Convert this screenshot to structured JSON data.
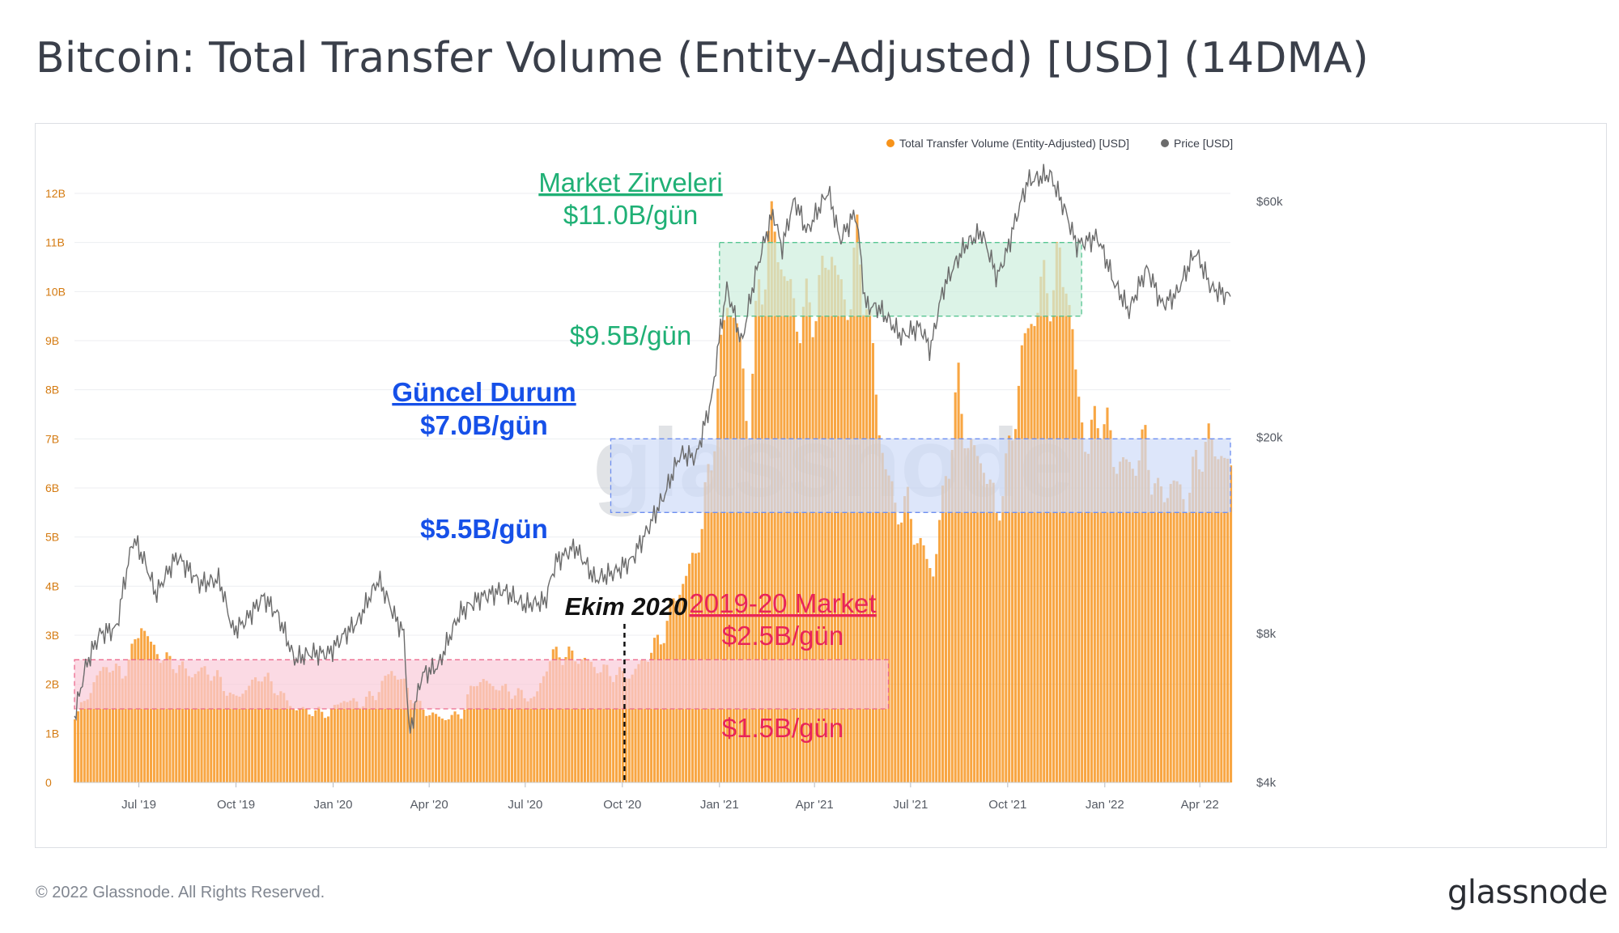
{
  "page": {
    "title": "Bitcoin: Total Transfer Volume (Entity-Adjusted) [USD] (14DMA)",
    "footer": "© 2022 Glassnode. All Rights Reserved.",
    "brand": "glassnode",
    "watermark": "glassnode"
  },
  "colors": {
    "volume": "#f7931a",
    "price": "#6b6b6b",
    "green": "#1fb075",
    "blue": "#1650e8",
    "red": "#e8245a",
    "black": "#111111"
  },
  "chart_data": {
    "type": "bar",
    "legend": {
      "position": "top-right",
      "items": [
        {
          "name": "Total Transfer Volume (Entity-Adjusted) [USD]",
          "color": "#f7931a"
        },
        {
          "name": "Price [USD]",
          "color": "#6b6b6b"
        }
      ]
    },
    "grid": true,
    "y_left": {
      "ticks": [
        "0",
        "1B",
        "2B",
        "3B",
        "4B",
        "5B",
        "6B",
        "7B",
        "8B",
        "9B",
        "10B",
        "11B",
        "12B"
      ],
      "range": [
        0,
        12000000000
      ]
    },
    "y_right": {
      "scale": "log",
      "ticks": [
        {
          "label": "$4k",
          "value": 4000
        },
        {
          "label": "$8k",
          "value": 8000
        },
        {
          "label": "$20k",
          "value": 20000
        },
        {
          "label": "$60k",
          "value": 60000
        }
      ]
    },
    "x_ticks": [
      "Jul '19",
      "Oct '19",
      "Jan '20",
      "Apr '20",
      "Jul '20",
      "Oct '20",
      "Jan '21",
      "Apr '21",
      "Jul '21",
      "Oct '21",
      "Jan '22",
      "Apr '22"
    ],
    "x_range": [
      "2019-05-01",
      "2022-04-30"
    ],
    "series": [
      {
        "name": "Total Transfer Volume (Entity-Adjusted) [USD]",
        "kind": "bar",
        "unit": "USD billions",
        "points": [
          [
            "2019-05-01",
            1.4
          ],
          [
            "2019-05-10",
            1.6
          ],
          [
            "2019-05-20",
            2.1
          ],
          [
            "2019-06-01",
            2.4
          ],
          [
            "2019-06-15",
            2.2
          ],
          [
            "2019-06-25",
            2.7
          ],
          [
            "2019-07-03",
            3.25
          ],
          [
            "2019-07-12",
            2.8
          ],
          [
            "2019-07-25",
            2.5
          ],
          [
            "2019-08-05",
            2.4
          ],
          [
            "2019-08-20",
            2.2
          ],
          [
            "2019-09-01",
            2.3
          ],
          [
            "2019-09-15",
            2.1
          ],
          [
            "2019-09-28",
            1.7
          ],
          [
            "2019-10-10",
            1.9
          ],
          [
            "2019-10-25",
            2.2
          ],
          [
            "2019-11-08",
            1.9
          ],
          [
            "2019-11-25",
            1.5
          ],
          [
            "2019-12-10",
            1.45
          ],
          [
            "2019-12-28",
            1.4
          ],
          [
            "2020-01-10",
            1.7
          ],
          [
            "2020-01-25",
            1.6
          ],
          [
            "2020-02-10",
            1.8
          ],
          [
            "2020-02-25",
            2.3
          ],
          [
            "2020-03-08",
            2.0
          ],
          [
            "2020-03-20",
            1.6
          ],
          [
            "2020-04-01",
            1.4
          ],
          [
            "2020-04-15",
            1.3
          ],
          [
            "2020-05-01",
            1.4
          ],
          [
            "2020-05-15",
            2.1
          ],
          [
            "2020-05-28",
            2.0
          ],
          [
            "2020-06-10",
            1.9
          ],
          [
            "2020-06-25",
            1.8
          ],
          [
            "2020-07-10",
            1.7
          ],
          [
            "2020-07-25",
            2.6
          ],
          [
            "2020-08-10",
            2.6
          ],
          [
            "2020-08-25",
            2.5
          ],
          [
            "2020-09-10",
            2.3
          ],
          [
            "2020-09-25",
            2.2
          ],
          [
            "2020-10-10",
            2.2
          ],
          [
            "2020-10-25",
            2.6
          ],
          [
            "2020-11-08",
            3.0
          ],
          [
            "2020-11-20",
            3.8
          ],
          [
            "2020-12-01",
            4.2
          ],
          [
            "2020-12-15",
            5.2
          ],
          [
            "2020-12-28",
            7.4
          ],
          [
            "2021-01-08",
            10.0
          ],
          [
            "2021-01-18",
            9.2
          ],
          [
            "2021-01-28",
            7.2
          ],
          [
            "2021-02-08",
            10.2
          ],
          [
            "2021-02-20",
            11.3
          ],
          [
            "2021-03-01",
            10.6
          ],
          [
            "2021-03-12",
            9.6
          ],
          [
            "2021-03-25",
            9.5
          ],
          [
            "2021-04-05",
            10.0
          ],
          [
            "2021-04-18",
            11.0
          ],
          [
            "2021-04-28",
            9.5
          ],
          [
            "2021-05-10",
            10.8
          ],
          [
            "2021-05-20",
            10.0
          ],
          [
            "2021-06-01",
            7.2
          ],
          [
            "2021-06-15",
            5.6
          ],
          [
            "2021-06-28",
            5.6
          ],
          [
            "2021-07-10",
            4.8
          ],
          [
            "2021-07-22",
            4.3
          ],
          [
            "2021-08-05",
            6.5
          ],
          [
            "2021-08-15",
            8.0
          ],
          [
            "2021-08-25",
            6.8
          ],
          [
            "2021-09-08",
            6.5
          ],
          [
            "2021-09-20",
            5.5
          ],
          [
            "2021-10-01",
            6.5
          ],
          [
            "2021-10-15",
            8.8
          ],
          [
            "2021-10-28",
            9.8
          ],
          [
            "2021-11-10",
            10.2
          ],
          [
            "2021-11-25",
            10.5
          ],
          [
            "2021-12-05",
            8.0
          ],
          [
            "2021-12-15",
            6.8
          ],
          [
            "2021-12-28",
            7.6
          ],
          [
            "2022-01-10",
            6.6
          ],
          [
            "2022-01-25",
            6.4
          ],
          [
            "2022-02-08",
            6.9
          ],
          [
            "2022-02-20",
            5.8
          ],
          [
            "2022-03-05",
            6.1
          ],
          [
            "2022-03-20",
            5.8
          ],
          [
            "2022-04-01",
            6.8
          ],
          [
            "2022-04-15",
            6.9
          ],
          [
            "2022-04-30",
            6.3
          ]
        ]
      },
      {
        "name": "Price [USD]",
        "kind": "line",
        "unit": "USD",
        "points": [
          [
            "2019-05-01",
            5400
          ],
          [
            "2019-05-12",
            6900
          ],
          [
            "2019-05-25",
            8000
          ],
          [
            "2019-06-10",
            8200
          ],
          [
            "2019-06-26",
            12500
          ],
          [
            "2019-07-08",
            11000
          ],
          [
            "2019-07-17",
            9600
          ],
          [
            "2019-08-06",
            11500
          ],
          [
            "2019-08-28",
            10100
          ],
          [
            "2019-09-15",
            10300
          ],
          [
            "2019-09-28",
            8100
          ],
          [
            "2019-10-10",
            8500
          ],
          [
            "2019-10-27",
            9500
          ],
          [
            "2019-11-10",
            8700
          ],
          [
            "2019-11-25",
            7100
          ],
          [
            "2019-12-10",
            7300
          ],
          [
            "2019-12-28",
            7300
          ],
          [
            "2020-01-10",
            7900
          ],
          [
            "2020-01-25",
            8500
          ],
          [
            "2020-02-13",
            10300
          ],
          [
            "2020-02-28",
            8700
          ],
          [
            "2020-03-08",
            8000
          ],
          [
            "2020-03-13",
            4900
          ],
          [
            "2020-03-25",
            6600
          ],
          [
            "2020-04-10",
            6900
          ],
          [
            "2020-04-30",
            8800
          ],
          [
            "2020-05-20",
            9500
          ],
          [
            "2020-06-10",
            9800
          ],
          [
            "2020-06-30",
            9150
          ],
          [
            "2020-07-20",
            9300
          ],
          [
            "2020-07-30",
            11200
          ],
          [
            "2020-08-17",
            12000
          ],
          [
            "2020-09-05",
            10300
          ],
          [
            "2020-09-25",
            10700
          ],
          [
            "2020-10-10",
            11300
          ],
          [
            "2020-10-25",
            13000
          ],
          [
            "2020-11-10",
            15300
          ],
          [
            "2020-11-25",
            18500
          ],
          [
            "2020-12-10",
            18200
          ],
          [
            "2020-12-25",
            24000
          ],
          [
            "2021-01-08",
            40000
          ],
          [
            "2021-01-22",
            30800
          ],
          [
            "2021-02-08",
            46000
          ],
          [
            "2021-02-21",
            57000
          ],
          [
            "2021-03-01",
            48000
          ],
          [
            "2021-03-13",
            60500
          ],
          [
            "2021-03-25",
            52000
          ],
          [
            "2021-04-14",
            63000
          ],
          [
            "2021-04-25",
            50000
          ],
          [
            "2021-05-10",
            57000
          ],
          [
            "2021-05-19",
            37000
          ],
          [
            "2021-06-01",
            36500
          ],
          [
            "2021-06-22",
            32000
          ],
          [
            "2021-07-10",
            33500
          ],
          [
            "2021-07-20",
            30000
          ],
          [
            "2021-08-01",
            40000
          ],
          [
            "2021-08-22",
            49000
          ],
          [
            "2021-09-06",
            52000
          ],
          [
            "2021-09-21",
            42000
          ],
          [
            "2021-10-01",
            48000
          ],
          [
            "2021-10-20",
            66000
          ],
          [
            "2021-11-10",
            68000
          ],
          [
            "2021-11-25",
            57000
          ],
          [
            "2021-12-05",
            49000
          ],
          [
            "2021-12-25",
            50800
          ],
          [
            "2022-01-10",
            41000
          ],
          [
            "2022-01-24",
            36000
          ],
          [
            "2022-02-10",
            44000
          ],
          [
            "2022-02-24",
            37000
          ],
          [
            "2022-03-10",
            39000
          ],
          [
            "2022-03-28",
            47500
          ],
          [
            "2022-04-12",
            40000
          ],
          [
            "2022-04-30",
            38500
          ]
        ]
      }
    ],
    "annotations": [
      {
        "name": "market-peaks",
        "heading": "Market Zirveleri",
        "top_label": "$11.0B/gün",
        "bottom_label": "$9.5B/gün",
        "y_range": [
          9.5,
          11.0
        ],
        "x_range": [
          "2021-01-01",
          "2021-12-10"
        ],
        "color": "green"
      },
      {
        "name": "current-state",
        "heading": "Güncel Durum",
        "top_label": "$7.0B/gün",
        "bottom_label": "$5.5B/gün",
        "y_range": [
          5.5,
          7.0
        ],
        "x_range": [
          "2020-09-20",
          "2022-04-30"
        ],
        "color": "blue"
      },
      {
        "name": "market-2019-20",
        "heading": "2019-20 Market",
        "top_label": "$2.5B/gün",
        "bottom_label": "$1.5B/gün",
        "y_range": [
          1.5,
          2.5
        ],
        "x_range": [
          "2019-05-01",
          "2021-06-10"
        ],
        "color": "red"
      },
      {
        "name": "october-2020",
        "label": "Ekim 2020",
        "date": "2020-10-03",
        "color": "black"
      }
    ]
  }
}
